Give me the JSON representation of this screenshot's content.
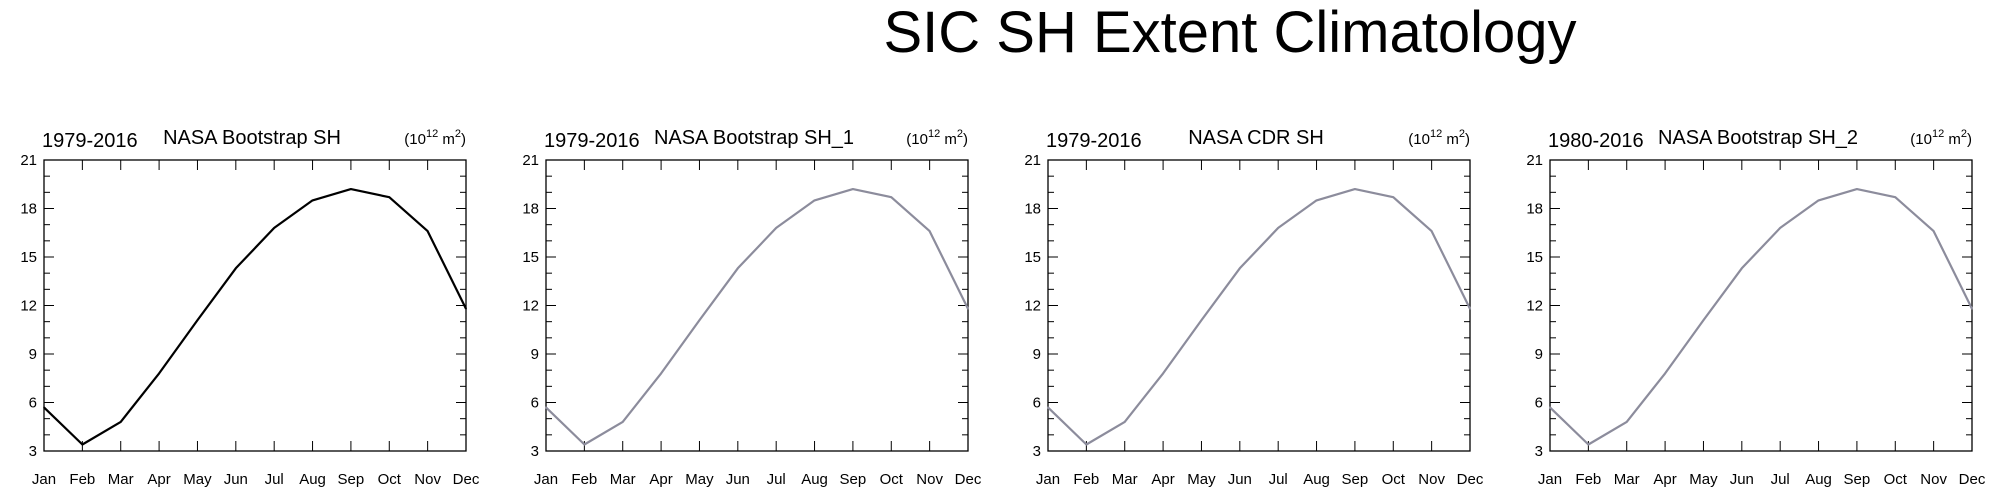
{
  "title": "SIC SH Extent Climatology",
  "colors": {
    "black": "#000000",
    "gray": "#8c8c9c"
  },
  "chart_data": [
    {
      "type": "line",
      "left_label": "1979-2016",
      "title": "NASA Bootstrap SH",
      "units_base": "(10",
      "units_exp": "12",
      "units_rest": " m",
      "units_sq": "2",
      "units_close": ")",
      "categories": [
        "Jan",
        "Feb",
        "Mar",
        "Apr",
        "May",
        "Jun",
        "Jul",
        "Aug",
        "Sep",
        "Oct",
        "Nov",
        "Dec"
      ],
      "values": [
        5.7,
        3.4,
        4.8,
        7.8,
        11.1,
        14.3,
        16.8,
        18.5,
        19.2,
        18.7,
        16.6,
        11.8
      ],
      "yticks": [
        3,
        6,
        9,
        12,
        15,
        18,
        21
      ],
      "ylim": [
        3,
        21
      ],
      "line_color": "#000000"
    },
    {
      "type": "line",
      "left_label": "1979-2016",
      "title": "NASA Bootstrap SH_1",
      "units_base": "(10",
      "units_exp": "12",
      "units_rest": " m",
      "units_sq": "2",
      "units_close": ")",
      "categories": [
        "Jan",
        "Feb",
        "Mar",
        "Apr",
        "May",
        "Jun",
        "Jul",
        "Aug",
        "Sep",
        "Oct",
        "Nov",
        "Dec"
      ],
      "values": [
        5.7,
        3.4,
        4.8,
        7.8,
        11.1,
        14.3,
        16.8,
        18.5,
        19.2,
        18.7,
        16.6,
        11.8
      ],
      "yticks": [
        3,
        6,
        9,
        12,
        15,
        18,
        21
      ],
      "ylim": [
        3,
        21
      ],
      "line_color": "#8c8c9c"
    },
    {
      "type": "line",
      "left_label": "1979-2016",
      "title": "NASA CDR SH",
      "units_base": "(10",
      "units_exp": "12",
      "units_rest": " m",
      "units_sq": "2",
      "units_close": ")",
      "categories": [
        "Jan",
        "Feb",
        "Mar",
        "Apr",
        "May",
        "Jun",
        "Jul",
        "Aug",
        "Sep",
        "Oct",
        "Nov",
        "Dec"
      ],
      "values": [
        5.7,
        3.4,
        4.8,
        7.8,
        11.1,
        14.3,
        16.8,
        18.5,
        19.2,
        18.7,
        16.6,
        11.8
      ],
      "yticks": [
        3,
        6,
        9,
        12,
        15,
        18,
        21
      ],
      "ylim": [
        3,
        21
      ],
      "line_color": "#8c8c9c"
    },
    {
      "type": "line",
      "left_label": "1980-2016",
      "title": "NASA Bootstrap SH_2",
      "units_base": "(10",
      "units_exp": "12",
      "units_rest": " m",
      "units_sq": "2",
      "units_close": ")",
      "categories": [
        "Jan",
        "Feb",
        "Mar",
        "Apr",
        "May",
        "Jun",
        "Jul",
        "Aug",
        "Sep",
        "Oct",
        "Nov",
        "Dec"
      ],
      "values": [
        5.7,
        3.4,
        4.8,
        7.8,
        11.1,
        14.3,
        16.8,
        18.5,
        19.2,
        18.7,
        16.6,
        11.8
      ],
      "yticks": [
        3,
        6,
        9,
        12,
        15,
        18,
        21
      ],
      "ylim": [
        3,
        21
      ],
      "line_color": "#8c8c9c"
    }
  ]
}
